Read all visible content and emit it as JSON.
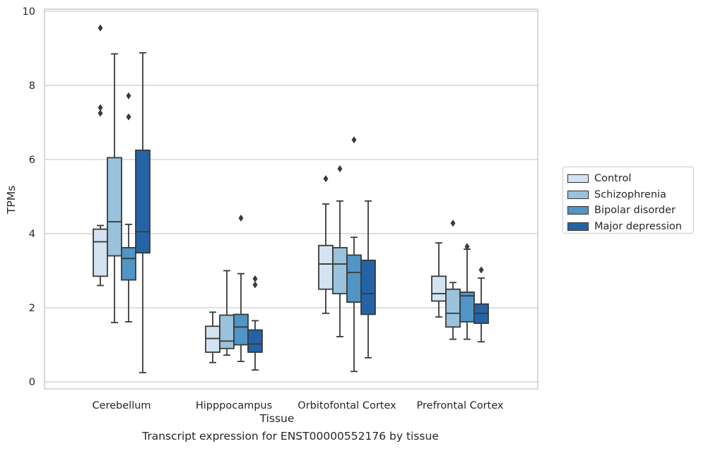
{
  "chart_data": {
    "type": "box",
    "xlabel": "Tissue",
    "ylabel": "TPMs",
    "caption": "Transcript expression for ENST00000552176 by tissue",
    "ylim": [
      -0.25,
      10.1
    ],
    "yticks": [
      0,
      2,
      4,
      6,
      8,
      10
    ],
    "grid": true,
    "legend_position": "right",
    "categories": [
      "Cerebellum",
      "Hipppocampus",
      "Orbitofontal Cortex",
      "Prefrontal Cortex"
    ],
    "series": [
      {
        "name": "Control",
        "color": "#d3e3f1",
        "boxes": [
          {
            "min": 2.6,
            "q1": 2.85,
            "median": 3.78,
            "q3": 4.12,
            "max": 4.22,
            "outliers": [
              7.25,
              7.4,
              9.55
            ]
          },
          {
            "min": 0.52,
            "q1": 0.8,
            "median": 1.17,
            "q3": 1.5,
            "max": 1.88,
            "outliers": []
          },
          {
            "min": 1.85,
            "q1": 2.5,
            "median": 3.18,
            "q3": 3.68,
            "max": 4.8,
            "outliers": [
              5.48
            ]
          },
          {
            "min": 1.75,
            "q1": 2.18,
            "median": 2.38,
            "q3": 2.85,
            "max": 3.75,
            "outliers": []
          }
        ]
      },
      {
        "name": "Schizophrenia",
        "color": "#9ac2dc",
        "boxes": [
          {
            "min": 1.6,
            "q1": 3.4,
            "median": 4.32,
            "q3": 6.05,
            "max": 8.85,
            "outliers": []
          },
          {
            "min": 0.72,
            "q1": 0.9,
            "median": 1.1,
            "q3": 1.8,
            "max": 3.0,
            "outliers": []
          },
          {
            "min": 1.22,
            "q1": 2.38,
            "median": 3.18,
            "q3": 3.62,
            "max": 4.88,
            "outliers": [
              5.75
            ]
          },
          {
            "min": 1.15,
            "q1": 1.48,
            "median": 1.85,
            "q3": 2.5,
            "max": 2.68,
            "outliers": [
              4.28
            ]
          }
        ]
      },
      {
        "name": "Bipolar disorder",
        "color": "#5095c5",
        "boxes": [
          {
            "min": 1.62,
            "q1": 2.75,
            "median": 3.33,
            "q3": 3.62,
            "max": 4.25,
            "outliers": [
              7.15,
              7.72
            ]
          },
          {
            "min": 0.55,
            "q1": 1.0,
            "median": 1.48,
            "q3": 1.82,
            "max": 2.92,
            "outliers": [
              4.42
            ]
          },
          {
            "min": 0.28,
            "q1": 2.15,
            "median": 2.95,
            "q3": 3.42,
            "max": 3.9,
            "outliers": [
              6.53
            ]
          },
          {
            "min": 1.15,
            "q1": 1.62,
            "median": 2.32,
            "q3": 2.42,
            "max": 3.58,
            "outliers": [
              3.65
            ]
          }
        ]
      },
      {
        "name": "Major depression",
        "color": "#2464a6",
        "boxes": [
          {
            "min": 0.25,
            "q1": 3.48,
            "median": 4.05,
            "q3": 6.25,
            "max": 8.88,
            "outliers": []
          },
          {
            "min": 0.32,
            "q1": 0.8,
            "median": 1.02,
            "q3": 1.4,
            "max": 1.65,
            "outliers": [
              2.62,
              2.78
            ]
          },
          {
            "min": 0.65,
            "q1": 1.82,
            "median": 2.38,
            "q3": 3.28,
            "max": 4.88,
            "outliers": []
          },
          {
            "min": 1.08,
            "q1": 1.58,
            "median": 1.85,
            "q3": 2.1,
            "max": 2.8,
            "outliers": [
              3.02
            ]
          }
        ]
      }
    ]
  }
}
